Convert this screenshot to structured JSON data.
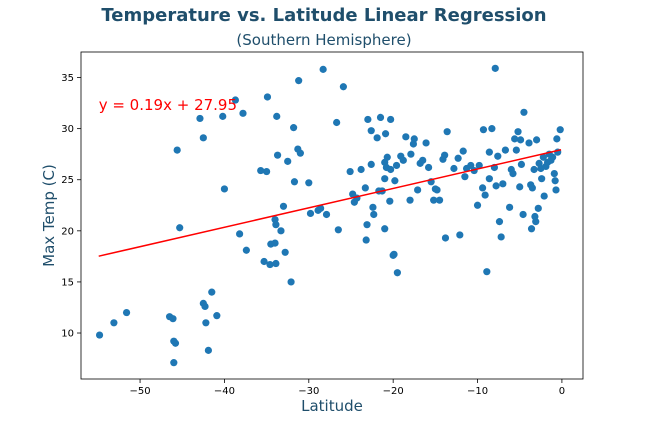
{
  "chart_data": {
    "type": "scatter",
    "title": "Temperature vs. Latitude Linear Regression",
    "subtitle": "(Southern Hemisphere)",
    "xlabel": "Latitude",
    "ylabel": "Max Temp (C)",
    "xlim": [
      -57,
      2.5
    ],
    "ylim": [
      5.5,
      37.5
    ],
    "xticks": [
      -50,
      -40,
      -30,
      -20,
      -10,
      0
    ],
    "yticks": [
      10,
      15,
      20,
      25,
      30,
      35
    ],
    "grid": false,
    "annotation": {
      "text": "y = 0.19x + 27.95",
      "x": -54.9,
      "y": 32.3,
      "color": "#ff0000"
    },
    "regression": {
      "slope": 0.19,
      "intercept": 27.95,
      "x_range": [
        -54.9,
        -0.1
      ],
      "color": "#ff0000"
    },
    "marker_color": "#1f77b4",
    "points": [
      [
        -54.8,
        9.8
      ],
      [
        -53.1,
        11.0
      ],
      [
        -51.6,
        12.0
      ],
      [
        -46.5,
        11.6
      ],
      [
        -46.1,
        11.4
      ],
      [
        -46.0,
        9.2
      ],
      [
        -45.8,
        9.0
      ],
      [
        -46.0,
        7.1
      ],
      [
        -45.6,
        27.9
      ],
      [
        -45.3,
        20.3
      ],
      [
        -42.9,
        31.0
      ],
      [
        -42.5,
        29.1
      ],
      [
        -42.5,
        12.9
      ],
      [
        -42.3,
        12.6
      ],
      [
        -42.2,
        11.0
      ],
      [
        -41.9,
        8.3
      ],
      [
        -41.5,
        14.0
      ],
      [
        -40.9,
        11.7
      ],
      [
        -40.2,
        31.2
      ],
      [
        -40.0,
        24.1
      ],
      [
        -38.7,
        32.8
      ],
      [
        -38.2,
        19.7
      ],
      [
        -37.8,
        31.5
      ],
      [
        -37.4,
        18.1
      ],
      [
        -35.7,
        25.9
      ],
      [
        -35.3,
        17.0
      ],
      [
        -35.0,
        25.8
      ],
      [
        -34.6,
        16.7
      ],
      [
        -34.9,
        33.1
      ],
      [
        -34.5,
        18.7
      ],
      [
        -34.0,
        18.8
      ],
      [
        -34.0,
        21.1
      ],
      [
        -33.9,
        20.6
      ],
      [
        -33.8,
        31.2
      ],
      [
        -33.7,
        27.4
      ],
      [
        -33.9,
        16.8
      ],
      [
        -33.3,
        20.0
      ],
      [
        -33.0,
        22.4
      ],
      [
        -32.8,
        17.9
      ],
      [
        -32.5,
        26.8
      ],
      [
        -32.1,
        15.0
      ],
      [
        -31.8,
        30.1
      ],
      [
        -31.7,
        24.8
      ],
      [
        -31.3,
        28.0
      ],
      [
        -31.2,
        34.7
      ],
      [
        -31.0,
        27.6
      ],
      [
        -30.0,
        24.7
      ],
      [
        -29.8,
        21.7
      ],
      [
        -28.9,
        22.0
      ],
      [
        -28.6,
        22.2
      ],
      [
        -28.3,
        35.8
      ],
      [
        -27.9,
        21.6
      ],
      [
        -26.7,
        30.6
      ],
      [
        -26.5,
        20.1
      ],
      [
        -25.9,
        34.1
      ],
      [
        -25.1,
        25.8
      ],
      [
        -24.8,
        23.6
      ],
      [
        -24.6,
        22.8
      ],
      [
        -24.3,
        23.2
      ],
      [
        -23.8,
        26.0
      ],
      [
        -23.3,
        24.2
      ],
      [
        -23.2,
        19.1
      ],
      [
        -23.1,
        20.6
      ],
      [
        -23.0,
        30.9
      ],
      [
        -22.6,
        26.5
      ],
      [
        -22.6,
        29.8
      ],
      [
        -22.4,
        22.3
      ],
      [
        -22.3,
        21.6
      ],
      [
        -21.9,
        29.1
      ],
      [
        -21.7,
        23.9
      ],
      [
        -21.5,
        31.1
      ],
      [
        -21.3,
        23.9
      ],
      [
        -21.0,
        20.2
      ],
      [
        -21.0,
        25.1
      ],
      [
        -21.0,
        26.7
      ],
      [
        -20.9,
        29.5
      ],
      [
        -20.8,
        26.2
      ],
      [
        -20.7,
        27.2
      ],
      [
        -20.4,
        22.9
      ],
      [
        -20.3,
        26.0
      ],
      [
        -20.3,
        30.9
      ],
      [
        -20.0,
        17.6
      ],
      [
        -19.9,
        17.7
      ],
      [
        -19.8,
        24.9
      ],
      [
        -19.6,
        26.4
      ],
      [
        -19.5,
        15.9
      ],
      [
        -19.1,
        27.3
      ],
      [
        -18.8,
        26.9
      ],
      [
        -18.5,
        29.2
      ],
      [
        -18.0,
        23.0
      ],
      [
        -17.9,
        27.5
      ],
      [
        -17.6,
        28.5
      ],
      [
        -17.5,
        29.0
      ],
      [
        -17.1,
        24.0
      ],
      [
        -16.8,
        26.6
      ],
      [
        -16.5,
        26.9
      ],
      [
        -16.1,
        28.6
      ],
      [
        -15.8,
        26.2
      ],
      [
        -15.5,
        24.8
      ],
      [
        -15.2,
        23.0
      ],
      [
        -15.0,
        24.1
      ],
      [
        -14.8,
        24.0
      ],
      [
        -14.5,
        23.0
      ],
      [
        -14.1,
        27.0
      ],
      [
        -13.9,
        27.4
      ],
      [
        -13.8,
        19.3
      ],
      [
        -13.6,
        29.7
      ],
      [
        -12.8,
        26.1
      ],
      [
        -12.3,
        27.1
      ],
      [
        -12.1,
        19.6
      ],
      [
        -11.7,
        27.8
      ],
      [
        -11.5,
        25.3
      ],
      [
        -11.3,
        26.1
      ],
      [
        -10.8,
        26.4
      ],
      [
        -10.4,
        25.9
      ],
      [
        -10.0,
        22.5
      ],
      [
        -9.8,
        26.4
      ],
      [
        -9.4,
        24.2
      ],
      [
        -9.3,
        29.9
      ],
      [
        -9.1,
        23.5
      ],
      [
        -8.9,
        16.0
      ],
      [
        -8.6,
        25.1
      ],
      [
        -8.6,
        27.7
      ],
      [
        -8.3,
        30.0
      ],
      [
        -8.0,
        26.2
      ],
      [
        -7.8,
        24.4
      ],
      [
        -7.9,
        35.9
      ],
      [
        -7.6,
        27.3
      ],
      [
        -7.4,
        20.9
      ],
      [
        -7.2,
        19.4
      ],
      [
        -7.0,
        24.6
      ],
      [
        -6.7,
        27.9
      ],
      [
        -6.2,
        22.3
      ],
      [
        -6.0,
        26.0
      ],
      [
        -5.8,
        25.6
      ],
      [
        -5.6,
        29.0
      ],
      [
        -5.4,
        27.9
      ],
      [
        -5.2,
        29.7
      ],
      [
        -5.0,
        24.3
      ],
      [
        -4.9,
        28.9
      ],
      [
        -4.8,
        26.5
      ],
      [
        -4.6,
        21.6
      ],
      [
        -4.5,
        31.6
      ],
      [
        -3.9,
        28.6
      ],
      [
        -3.7,
        24.5
      ],
      [
        -3.5,
        24.2
      ],
      [
        -3.6,
        20.2
      ],
      [
        -3.3,
        26.0
      ],
      [
        -3.2,
        21.4
      ],
      [
        -3.1,
        20.9
      ],
      [
        -3.0,
        28.9
      ],
      [
        -2.8,
        22.2
      ],
      [
        -2.7,
        26.6
      ],
      [
        -2.5,
        26.1
      ],
      [
        -2.4,
        25.1
      ],
      [
        -2.2,
        27.2
      ],
      [
        -2.1,
        23.4
      ],
      [
        -1.9,
        26.3
      ],
      [
        -1.7,
        26.7
      ],
      [
        -1.5,
        27.5
      ],
      [
        -1.3,
        26.9
      ],
      [
        -1.1,
        27.2
      ],
      [
        -0.9,
        25.6
      ],
      [
        -0.8,
        24.9
      ],
      [
        -0.7,
        24.0
      ],
      [
        -0.6,
        29.0
      ],
      [
        -0.5,
        27.7
      ],
      [
        -0.2,
        29.9
      ]
    ]
  }
}
